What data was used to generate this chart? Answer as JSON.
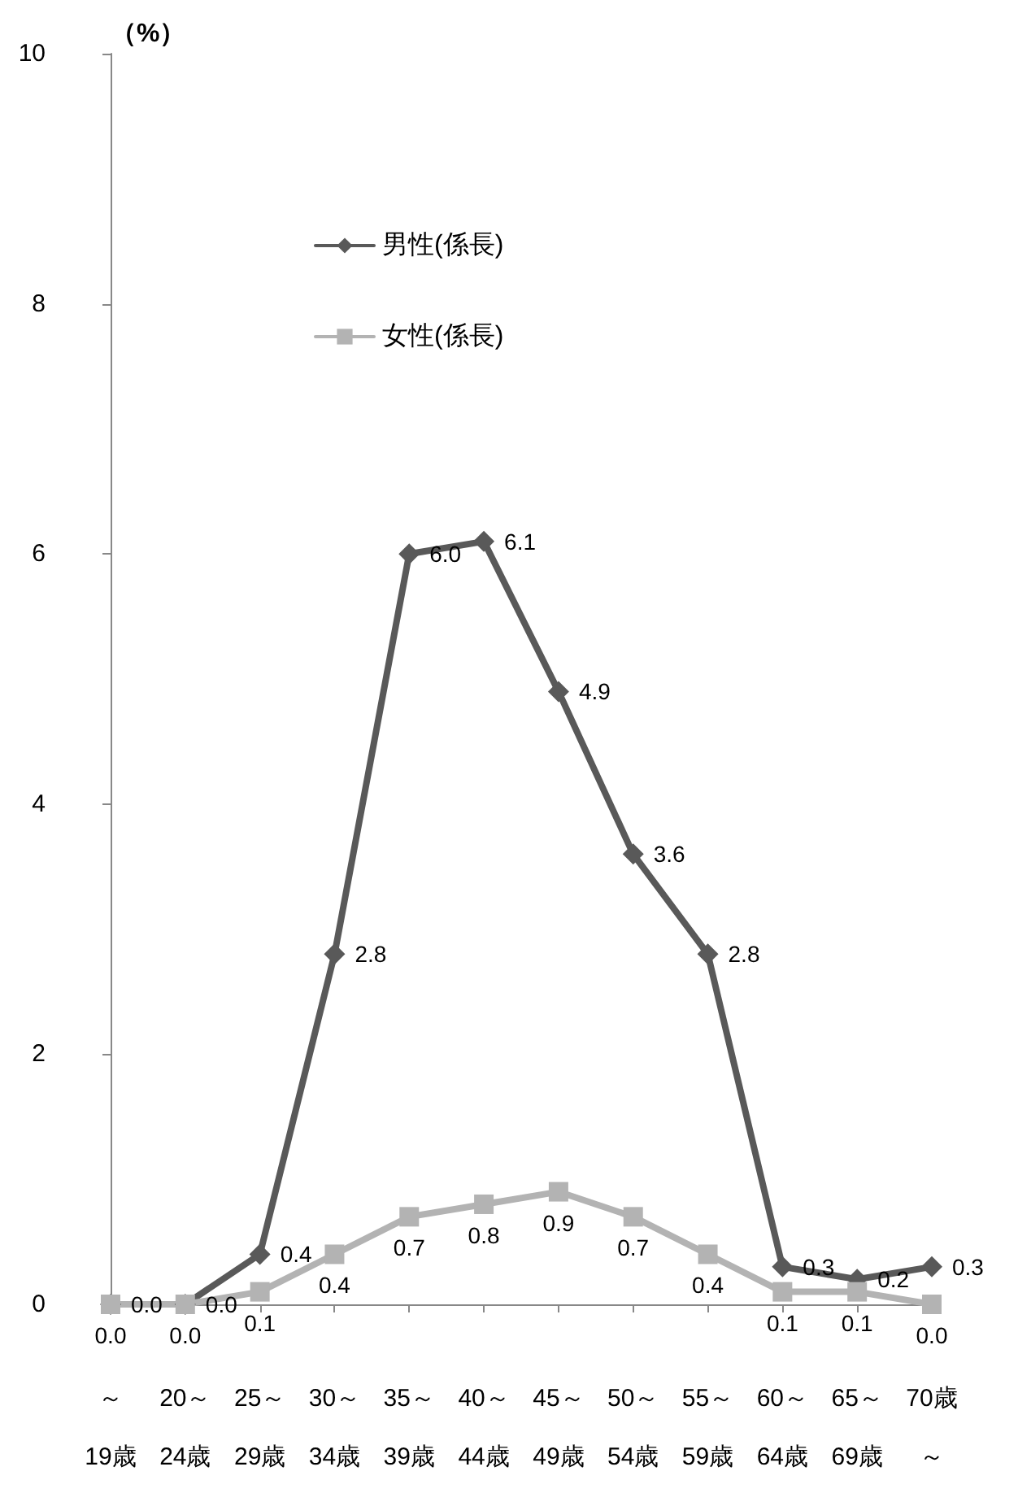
{
  "chart_data": {
    "type": "line",
    "ylabel": "（%）",
    "categories": [
      "～19歳",
      "20～24歳",
      "25～29歳",
      "30～34歳",
      "35～39歳",
      "40～44歳",
      "45～49歳",
      "50～54歳",
      "55～59歳",
      "60～64歳",
      "65～69歳",
      "70歳～"
    ],
    "series": [
      {
        "name": "男性(係長)",
        "color": "#595959",
        "marker": "diamond",
        "values": [
          0.0,
          0.0,
          0.4,
          2.8,
          6.0,
          6.1,
          4.9,
          3.6,
          2.8,
          0.3,
          0.2,
          0.3
        ],
        "value_labels": [
          "0.0",
          "0.0",
          "0.4",
          "2.8",
          "6.0",
          "6.1",
          "4.9",
          "3.6",
          "2.8",
          "0.3",
          "0.2",
          "0.3"
        ]
      },
      {
        "name": "女性(係長)",
        "color": "#b3b3b3",
        "marker": "square",
        "values": [
          0.0,
          0.0,
          0.1,
          0.4,
          0.7,
          0.8,
          0.9,
          0.7,
          0.4,
          0.1,
          0.1,
          0.0
        ],
        "value_labels": [
          "0.0",
          "0.0",
          "0.1",
          "0.4",
          "0.7",
          "0.8",
          "0.9",
          "0.7",
          "0.4",
          "0.1",
          "0.1",
          "0.0"
        ]
      }
    ],
    "ylim": [
      0,
      10
    ],
    "yticks": [
      0,
      2,
      4,
      6,
      8,
      10
    ],
    "grid": false,
    "legend": "top left",
    "line_style": "solid"
  }
}
